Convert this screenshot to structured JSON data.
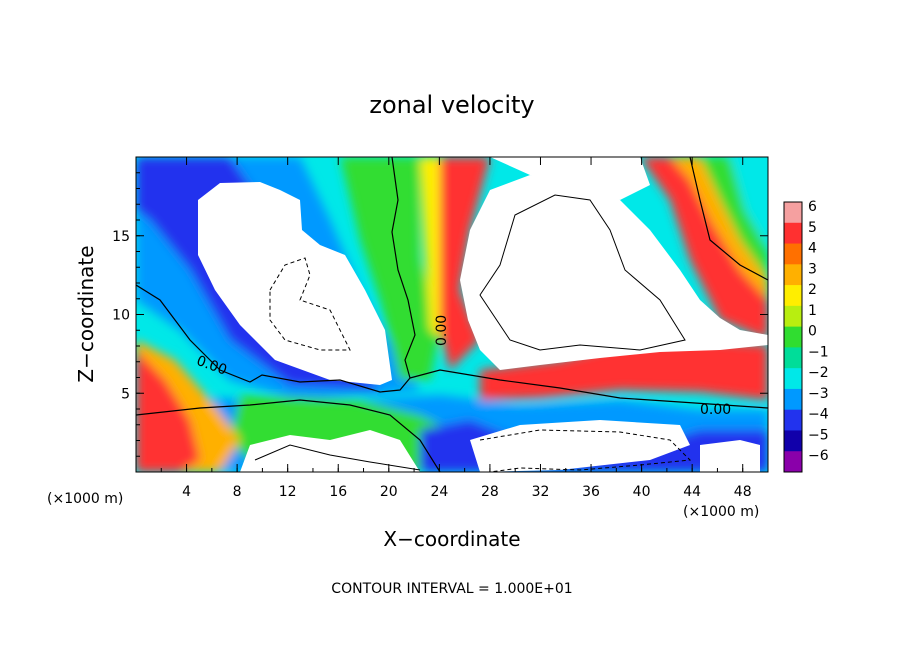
{
  "chart_data": {
    "type": "heatmap",
    "title": "zonal velocity",
    "xlabel": "X−coordinate",
    "ylabel": "Z−coordinate",
    "x_unit": "(×1000 m)",
    "y_unit": "(×1000 m)",
    "xlim": [
      0,
      50
    ],
    "ylim": [
      0,
      20
    ],
    "x_ticks": [
      4,
      8,
      12,
      16,
      20,
      24,
      28,
      32,
      36,
      40,
      44,
      48
    ],
    "y_ticks": [
      5,
      10,
      15
    ],
    "contour_interval_label": "CONTOUR INTERVAL = 1.000E+01",
    "contour_label": "0.00",
    "colorbar": {
      "values": [
        6,
        5,
        4,
        3,
        2,
        1,
        0,
        -1,
        -2,
        -3,
        -4,
        -5,
        -6
      ],
      "colors": [
        "#f5a0a0",
        "#ff3030",
        "#ff7000",
        "#ffb000",
        "#ffee00",
        "#b8ee10",
        "#30dd30",
        "#00dd99",
        "#00e8e8",
        "#0099ff",
        "#2233ee",
        "#1100aa",
        "#8a00aa"
      ]
    },
    "grid": false,
    "legend": "colorbar-right"
  }
}
